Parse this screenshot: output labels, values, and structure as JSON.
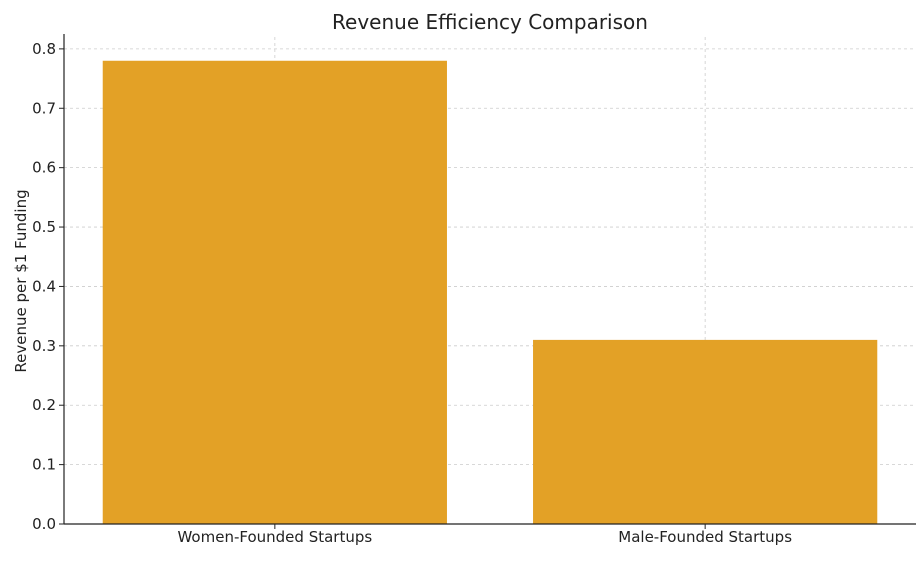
{
  "chart_data": {
    "type": "bar",
    "title": "Revenue Efficiency Comparison",
    "xlabel": "",
    "ylabel": "Revenue per $1 Funding",
    "categories": [
      "Women-Founded Startups",
      "Male-Founded Startups"
    ],
    "values": [
      0.78,
      0.31
    ],
    "ylim": [
      0,
      0.82
    ],
    "yticks": [
      0.0,
      0.1,
      0.2,
      0.3,
      0.4,
      0.5,
      0.6,
      0.7,
      0.8
    ],
    "ytick_labels": [
      "0.0",
      "0.1",
      "0.2",
      "0.3",
      "0.4",
      "0.5",
      "0.6",
      "0.7",
      "0.8"
    ],
    "grid": true,
    "bar_color": "#E3A126"
  }
}
